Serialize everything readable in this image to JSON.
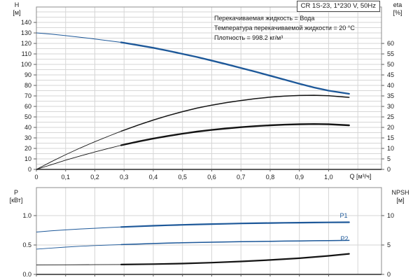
{
  "title_box": "CR 1S-23, 1*230 V, 50Hz",
  "info_lines": [
    "Перекачиваемая жидкость = Вода",
    "Температура перекачиваемой жидкости = 20 °C",
    "Плотность = 998.2 кг/м³"
  ],
  "colors": {
    "curve_blue": "#1d5899",
    "curve_black": "#141414",
    "grid": "#d6d6d6",
    "border": "#8c8c8c",
    "axis": "#5f5f5f",
    "tick": "#5f5f5f"
  },
  "labels": {
    "q_axis": "Q [м³/ч]",
    "head_axis": "H",
    "head_unit": "[м]",
    "eta_axis": "eta",
    "eta_unit": "[%]",
    "power_axis": "P",
    "power_unit": "[кВт]",
    "npsh_axis": "NPSH",
    "npsh_unit": "[м]"
  },
  "chart_data": [
    {
      "type": "line",
      "title": "Pump head and efficiency vs flow",
      "xlabel": "Q [м³/ч]",
      "xlim": [
        0,
        1.181
      ],
      "x_tick_values": [
        0,
        0.1,
        0.2,
        0.3,
        0.4,
        0.5,
        0.6,
        0.7,
        0.8,
        0.9,
        1.0
      ],
      "x_tick_labels": [
        "0",
        "0,1",
        "0,2",
        "0,3",
        "0,4",
        "0,5",
        "0,6",
        "0,7",
        "0,8",
        "0,9",
        "1,0"
      ],
      "grid": {
        "x_step": 0.1,
        "y_step_left": 5
      },
      "left_axis": {
        "label": "H [м]",
        "lim": [
          0,
          154.7
        ],
        "tick_values": [
          0,
          10,
          20,
          30,
          40,
          50,
          60,
          70,
          80,
          90,
          100,
          110,
          120,
          130,
          140
        ],
        "tick_labels": [
          "0",
          "10",
          "20",
          "30",
          "40",
          "50",
          "60",
          "70",
          "80",
          "90",
          "100",
          "110",
          "120",
          "130",
          "140"
        ]
      },
      "right_axis": {
        "label": "eta [%]",
        "lim": [
          0,
          77.35
        ],
        "tick_values": [
          0,
          5,
          10,
          15,
          20,
          25,
          30,
          35,
          40,
          45,
          50,
          55,
          60
        ],
        "tick_labels": [
          "0",
          "5",
          "10",
          "15",
          "20",
          "25",
          "30",
          "35",
          "40",
          "45",
          "50",
          "55",
          "60"
        ]
      },
      "series": [
        {
          "name": "head-curve",
          "tag": "H",
          "axis": "left",
          "color": "blue",
          "bold_from": 0.29,
          "thin_width": 1.0,
          "bold_width": 2.4,
          "points": [
            [
              0,
              130
            ],
            [
              0.05,
              128.8
            ],
            [
              0.1,
              127.4
            ],
            [
              0.15,
              125.9
            ],
            [
              0.2,
              124.2
            ],
            [
              0.25,
              122.4
            ],
            [
              0.29,
              121
            ],
            [
              0.35,
              118.2
            ],
            [
              0.4,
              115.8
            ],
            [
              0.45,
              113
            ],
            [
              0.5,
              110
            ],
            [
              0.55,
              107
            ],
            [
              0.6,
              103.6
            ],
            [
              0.65,
              100.2
            ],
            [
              0.7,
              96.6
            ],
            [
              0.75,
              93
            ],
            [
              0.8,
              89.2
            ],
            [
              0.85,
              85.4
            ],
            [
              0.9,
              81.6
            ],
            [
              0.95,
              78
            ],
            [
              1.0,
              75
            ],
            [
              1.07,
              72
            ]
          ]
        },
        {
          "name": "eta-pump-curve",
          "tag": "eta",
          "axis": "right",
          "color": "black",
          "bold_from": 0.29,
          "thin_width": 0.9,
          "bold_width": 1.5,
          "points": [
            [
              0,
              0
            ],
            [
              0.05,
              3.6
            ],
            [
              0.1,
              7
            ],
            [
              0.15,
              10.2
            ],
            [
              0.2,
              13.2
            ],
            [
              0.25,
              16
            ],
            [
              0.29,
              18.2
            ],
            [
              0.35,
              21.2
            ],
            [
              0.4,
              23.5
            ],
            [
              0.45,
              25.6
            ],
            [
              0.5,
              27.5
            ],
            [
              0.55,
              29.2
            ],
            [
              0.6,
              30.6
            ],
            [
              0.65,
              31.8
            ],
            [
              0.7,
              32.8
            ],
            [
              0.75,
              33.7
            ],
            [
              0.8,
              34.4
            ],
            [
              0.85,
              34.9
            ],
            [
              0.9,
              35.2
            ],
            [
              0.95,
              35.3
            ],
            [
              1.0,
              35.1
            ],
            [
              1.07,
              34.3
            ]
          ]
        },
        {
          "name": "eta-total-curve",
          "tag": "eta total",
          "axis": "right",
          "color": "black",
          "bold_from": 0.29,
          "thin_width": 0.9,
          "bold_width": 2.4,
          "points": [
            [
              0,
              0
            ],
            [
              0.05,
              2.2
            ],
            [
              0.1,
              4.4
            ],
            [
              0.15,
              6.4
            ],
            [
              0.2,
              8.3
            ],
            [
              0.25,
              10.1
            ],
            [
              0.29,
              11.5
            ],
            [
              0.35,
              13.3
            ],
            [
              0.4,
              14.7
            ],
            [
              0.45,
              15.9
            ],
            [
              0.5,
              17
            ],
            [
              0.55,
              18
            ],
            [
              0.6,
              18.8
            ],
            [
              0.65,
              19.5
            ],
            [
              0.7,
              20.1
            ],
            [
              0.75,
              20.6
            ],
            [
              0.8,
              21
            ],
            [
              0.85,
              21.3
            ],
            [
              0.9,
              21.5
            ],
            [
              0.95,
              21.6
            ],
            [
              1.0,
              21.5
            ],
            [
              1.07,
              21
            ]
          ]
        }
      ]
    },
    {
      "type": "line",
      "title": "Power and NPSH vs flow",
      "xlabel": "Q [м³/ч]",
      "xlim": [
        0,
        1.181
      ],
      "x_tick_values": [
        0,
        0.1,
        0.2,
        0.3,
        0.4,
        0.5,
        0.6,
        0.7,
        0.8,
        0.9,
        1.0
      ],
      "x_tick_labels": [],
      "grid": {
        "x_step": 0.1,
        "y_step_left": 0.5
      },
      "left_axis": {
        "label": "P [кВт]",
        "lim": [
          0,
          1.476
        ],
        "tick_values": [
          0,
          0.5,
          1.0
        ],
        "tick_labels": [
          "0.0",
          "0.5",
          "1.0"
        ]
      },
      "right_axis": {
        "label": "NPSH [м]",
        "lim": [
          0,
          14.76
        ],
        "tick_values": [
          0,
          5,
          10
        ],
        "tick_labels": [
          "0",
          "5",
          "10"
        ]
      },
      "series": [
        {
          "name": "p1-curve",
          "tag": "P1",
          "axis": "left",
          "color": "blue",
          "bold_from": 0.29,
          "thin_width": 1.0,
          "bold_width": 2.2,
          "points": [
            [
              0,
              0.72
            ],
            [
              0.05,
              0.74
            ],
            [
              0.1,
              0.757
            ],
            [
              0.15,
              0.772
            ],
            [
              0.2,
              0.785
            ],
            [
              0.25,
              0.797
            ],
            [
              0.29,
              0.806
            ],
            [
              0.35,
              0.818
            ],
            [
              0.4,
              0.827
            ],
            [
              0.45,
              0.836
            ],
            [
              0.5,
              0.843
            ],
            [
              0.55,
              0.85
            ],
            [
              0.6,
              0.856
            ],
            [
              0.65,
              0.861
            ],
            [
              0.7,
              0.866
            ],
            [
              0.75,
              0.87
            ],
            [
              0.8,
              0.874
            ],
            [
              0.85,
              0.877
            ],
            [
              0.9,
              0.88
            ],
            [
              0.95,
              0.882
            ],
            [
              1.0,
              0.884
            ],
            [
              1.07,
              0.887
            ]
          ]
        },
        {
          "name": "p2-curve",
          "tag": "P2",
          "axis": "left",
          "color": "blue",
          "bold_from": 0.29,
          "thin_width": 0.9,
          "bold_width": 1.5,
          "points": [
            [
              0,
              0.43
            ],
            [
              0.05,
              0.448
            ],
            [
              0.1,
              0.464
            ],
            [
              0.15,
              0.478
            ],
            [
              0.2,
              0.49
            ],
            [
              0.25,
              0.5
            ],
            [
              0.29,
              0.507
            ],
            [
              0.35,
              0.517
            ],
            [
              0.4,
              0.525
            ],
            [
              0.45,
              0.532
            ],
            [
              0.5,
              0.538
            ],
            [
              0.55,
              0.543
            ],
            [
              0.6,
              0.548
            ],
            [
              0.65,
              0.552
            ],
            [
              0.7,
              0.556
            ],
            [
              0.75,
              0.56
            ],
            [
              0.8,
              0.563
            ],
            [
              0.85,
              0.566
            ],
            [
              0.9,
              0.569
            ],
            [
              0.95,
              0.572
            ],
            [
              1.0,
              0.575
            ],
            [
              1.07,
              0.579
            ]
          ]
        },
        {
          "name": "npsh-curve",
          "tag": "NPSH",
          "axis": "right",
          "color": "black",
          "bold_from": 0.29,
          "thin_width": 0.9,
          "bold_width": 2.2,
          "points": [
            [
              0,
              1.62
            ],
            [
              0.1,
              1.63
            ],
            [
              0.2,
              1.65
            ],
            [
              0.29,
              1.68
            ],
            [
              0.4,
              1.75
            ],
            [
              0.5,
              1.85
            ],
            [
              0.6,
              2.0
            ],
            [
              0.7,
              2.2
            ],
            [
              0.8,
              2.45
            ],
            [
              0.9,
              2.75
            ],
            [
              1.0,
              3.15
            ],
            [
              1.07,
              3.5
            ]
          ]
        }
      ]
    }
  ]
}
